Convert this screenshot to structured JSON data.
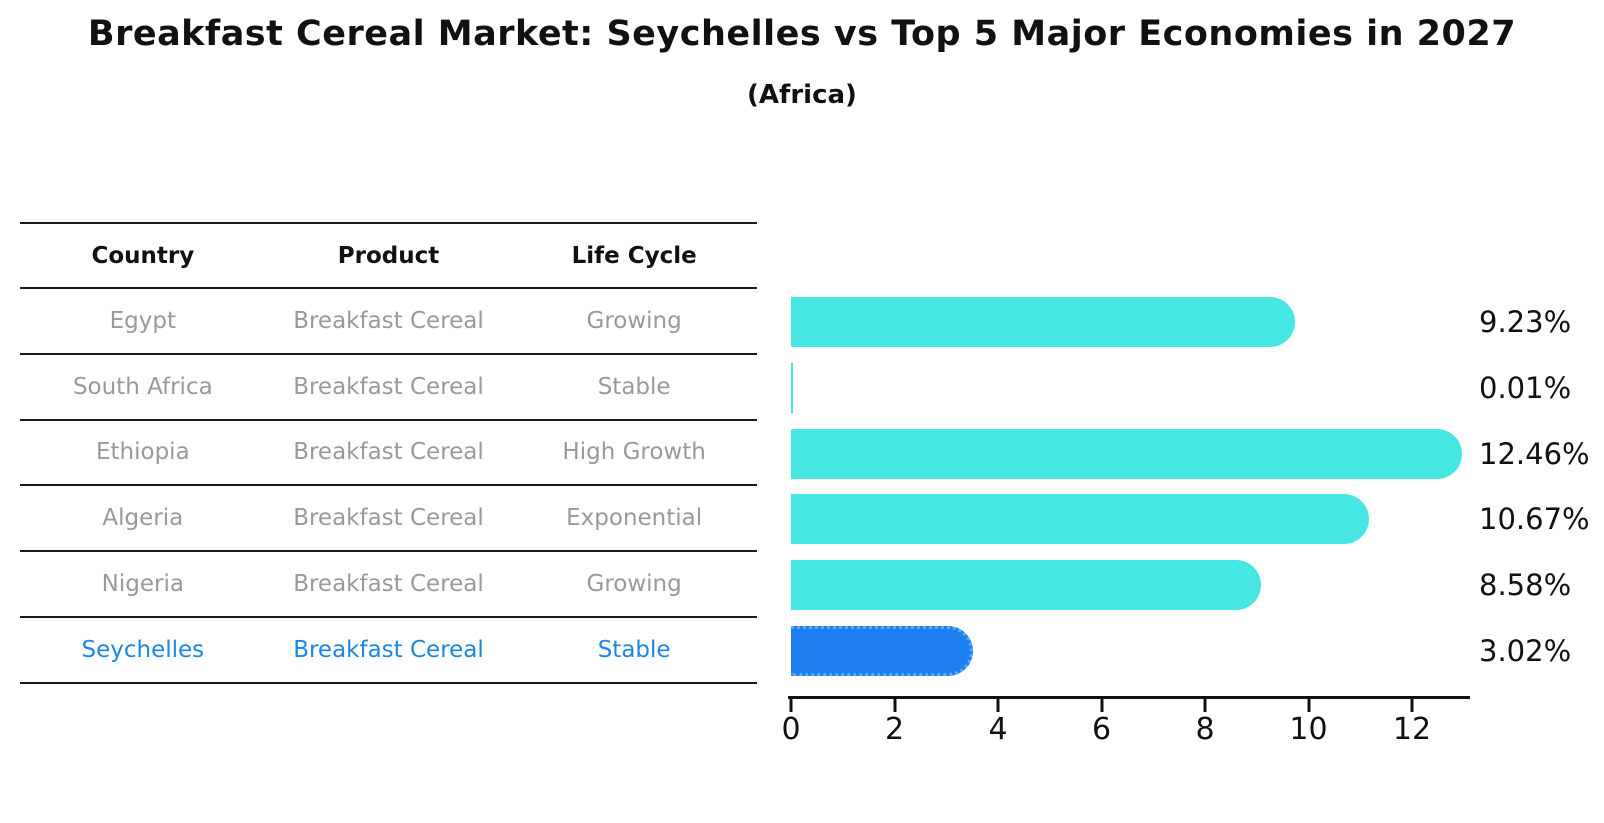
{
  "title": "Breakfast Cereal Market: Seychelles vs Top 5 Major Economies in 2027",
  "subtitle": "(Africa)",
  "colors": {
    "bar_default": "#46e6e2",
    "bar_highlight": "#1e80f0",
    "highlight_text": "#1e86e0",
    "muted_text": "#999999",
    "heading_text": "#111111"
  },
  "table": {
    "columns": [
      "Country",
      "Product",
      "Life Cycle"
    ],
    "rows": [
      {
        "country": "Egypt",
        "product": "Breakfast Cereal",
        "life_cycle": "Growing",
        "highlight": false
      },
      {
        "country": "South Africa",
        "product": "Breakfast Cereal",
        "life_cycle": "Stable",
        "highlight": false
      },
      {
        "country": "Ethiopia",
        "product": "Breakfast Cereal",
        "life_cycle": "High Growth",
        "highlight": false
      },
      {
        "country": "Algeria",
        "product": "Breakfast Cereal",
        "life_cycle": "Exponential",
        "highlight": false
      },
      {
        "country": "Nigeria",
        "product": "Breakfast Cereal",
        "life_cycle": "Growing",
        "highlight": false
      },
      {
        "country": "Seychelles",
        "product": "Breakfast Cereal",
        "life_cycle": "Stable",
        "highlight": true
      }
    ]
  },
  "chart_data": {
    "type": "bar",
    "orientation": "horizontal",
    "title": "Breakfast Cereal Market: Seychelles vs Top 5 Major Economies in 2027",
    "subtitle": "(Africa)",
    "categories": [
      "Egypt",
      "South Africa",
      "Ethiopia",
      "Algeria",
      "Nigeria",
      "Seychelles"
    ],
    "values": [
      9.23,
      0.01,
      12.46,
      10.67,
      8.58,
      3.02
    ],
    "value_labels": [
      "9.23%",
      "0.01%",
      "12.46%",
      "10.67%",
      "8.58%",
      "3.02%"
    ],
    "highlight_index": 5,
    "x_ticks": [
      0,
      2,
      4,
      6,
      8,
      10,
      12
    ],
    "xlim": [
      0,
      13.1
    ],
    "xlabel": "",
    "ylabel": "",
    "grid": false,
    "legend": "none"
  }
}
